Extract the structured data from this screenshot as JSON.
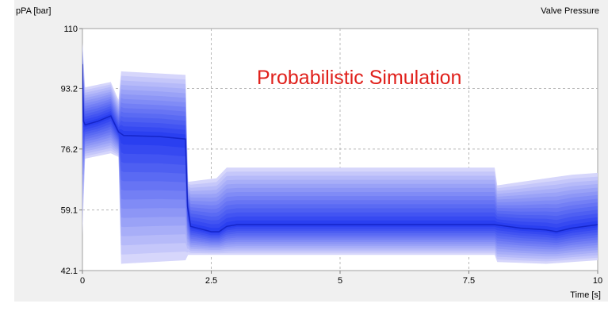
{
  "chart_data": {
    "type": "line",
    "title": "Valve Pressure",
    "ylabel": "pPA [bar]",
    "xlabel": "Time [s]",
    "annotation": "Probabilistic Simulation",
    "xlim": [
      0,
      10
    ],
    "ylim": [
      42.1,
      110
    ],
    "x_ticks": [
      "0",
      "2.5",
      "5",
      "7.5",
      "10"
    ],
    "y_ticks": [
      "110",
      "93.2",
      "76.2",
      "59.1",
      "42.1"
    ],
    "grid": true,
    "colors": {
      "median_line": "#1525c8",
      "band_outer": "#d6d6fb",
      "band_inner": "#2a3ff0"
    },
    "series": [
      {
        "x": [
          0,
          0.02,
          0.05,
          0.3,
          0.55,
          0.6,
          0.7,
          0.8,
          1.5,
          2.0,
          2.04,
          2.1,
          2.5,
          2.65,
          2.8,
          3.0,
          5.0,
          7.5,
          8.0,
          8.5,
          9.0,
          9.2,
          9.5,
          10
        ],
        "y": [
          100,
          84,
          83,
          84,
          85.5,
          84,
          81,
          80,
          79.7,
          79,
          60,
          54.5,
          53,
          53,
          54.5,
          55,
          55,
          55,
          55,
          54,
          53.5,
          53,
          54,
          55
        ]
      }
    ],
    "band": {
      "x": [
        0,
        0.05,
        0.55,
        0.7,
        0.75,
        2.0,
        2.05,
        2.6,
        2.8,
        3.0,
        8.0,
        8.05,
        9.0,
        9.5,
        10
      ],
      "lower": [
        52,
        73.5,
        75,
        74,
        44,
        45,
        46.5,
        46.5,
        46.5,
        46.5,
        46.5,
        44.5,
        44,
        44.5,
        45
      ],
      "upper": [
        106,
        93.5,
        95,
        90,
        98,
        97,
        67,
        68,
        71,
        71,
        71,
        66,
        68,
        69,
        69.5
      ]
    }
  }
}
